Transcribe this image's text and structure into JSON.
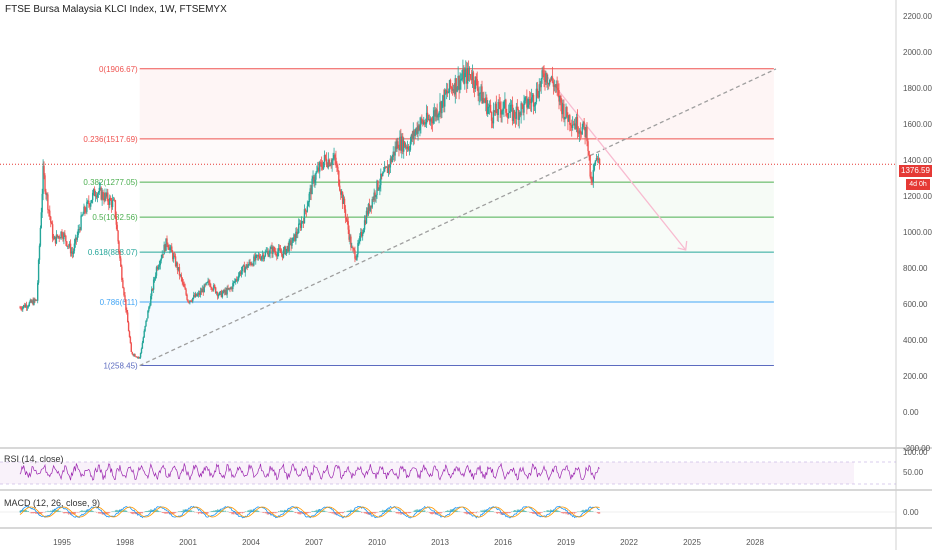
{
  "title": "FTSE Bursa Malaysia KLCI Index, 1W, FTSEMYX",
  "colors": {
    "candle_up": "#26a69a",
    "candle_down": "#ef5350",
    "price_line": "#e53935",
    "rsi": "#9c27b0",
    "macd_line": "#2196f3",
    "signal_line": "#ff9800",
    "trend_line": "#9e9e9e",
    "projection_arrow": "#f8bbd0"
  },
  "price_tag": "1376.59",
  "time_tag": "4d 0h",
  "y_axis_labels": [
    "2200.00",
    "2000.00",
    "1800.00",
    "1600.00",
    "1400.00",
    "1200.00",
    "1000.00",
    "800.00",
    "600.00",
    "400.00",
    "200.00",
    "0.00",
    "-200.00"
  ],
  "x_axis_labels": [
    "1995",
    "1998",
    "2001",
    "2004",
    "2007",
    "2010",
    "2013",
    "2016",
    "2019",
    "2022",
    "2025",
    "2028"
  ],
  "fib_levels": [
    {
      "label": "0(1906.67)",
      "value": 1906.67,
      "color": "#ef5350"
    },
    {
      "label": "0.236(1517.69)",
      "value": 1517.69,
      "color": "#ef5350"
    },
    {
      "label": "0.382(1277.05)",
      "value": 1277.05,
      "color": "#4caf50"
    },
    {
      "label": "0.5(1082.56)",
      "value": 1082.56,
      "color": "#4caf50"
    },
    {
      "label": "0.618(888.07)",
      "value": 888.07,
      "color": "#26a69a"
    },
    {
      "label": "0.786(611)",
      "value": 611,
      "color": "#42a5f5"
    },
    {
      "label": "1(258.45)",
      "value": 258.45,
      "color": "#5c6bc0"
    }
  ],
  "rsi": {
    "label": "RSI (14, close)",
    "axis": [
      "100.00",
      "50.00"
    ]
  },
  "macd": {
    "label": "MACD (12, 26, close, 9)",
    "axis": [
      "0.00"
    ]
  },
  "chart_data": {
    "type": "line",
    "title": "FTSE Bursa Malaysia KLCI Index, 1W, FTSEMYX",
    "ylim": [
      -200,
      2200
    ],
    "x": [
      1993.0,
      1993.8,
      1994.1,
      1994.6,
      1995.0,
      1995.5,
      1996.0,
      1996.6,
      1997.0,
      1997.5,
      1997.8,
      1998.0,
      1998.3,
      1998.7,
      1999.0,
      1999.5,
      2000.0,
      2000.5,
      2001.0,
      2001.5,
      2002.0,
      2002.5,
      2003.0,
      2003.5,
      2004.0,
      2004.5,
      2005.0,
      2005.5,
      2006.0,
      2006.5,
      2007.0,
      2007.5,
      2008.0,
      2008.5,
      2008.8,
      2009.0,
      2009.5,
      2010.0,
      2010.5,
      2011.0,
      2011.5,
      2012.0,
      2012.5,
      2013.0,
      2013.5,
      2014.0,
      2014.5,
      2015.0,
      2015.5,
      2016.0,
      2016.5,
      2017.0,
      2017.5,
      2018.0,
      2018.4,
      2018.8,
      2019.0,
      2019.5,
      2020.0,
      2020.2,
      2020.4,
      2020.6
    ],
    "values": [
      580,
      620,
      1330,
      950,
      1000,
      880,
      1100,
      1230,
      1200,
      1150,
      800,
      620,
      330,
      300,
      500,
      800,
      950,
      800,
      620,
      650,
      720,
      650,
      680,
      780,
      830,
      870,
      900,
      880,
      950,
      1080,
      1300,
      1400,
      1400,
      1100,
      900,
      870,
      1100,
      1250,
      1350,
      1500,
      1480,
      1600,
      1620,
      1700,
      1800,
      1850,
      1880,
      1750,
      1650,
      1700,
      1650,
      1700,
      1750,
      1880,
      1830,
      1700,
      1650,
      1600,
      1550,
      1250,
      1390,
      1376.59
    ],
    "fib_retracement": [
      1906.67,
      1517.69,
      1277.05,
      1082.56,
      888.07,
      611,
      258.45
    ],
    "rsi_ylim": [
      0,
      100
    ],
    "macd_zero": 0
  }
}
